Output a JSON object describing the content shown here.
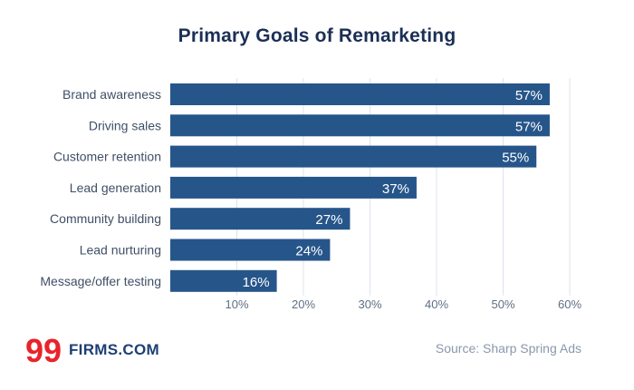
{
  "chart_data": {
    "type": "bar",
    "orientation": "horizontal",
    "title": "Primary Goals of Remarketing",
    "categories": [
      "Brand awareness",
      "Driving sales",
      "Customer retention",
      "Lead generation",
      "Community building",
      "Lead nurturing",
      "Message/offer testing"
    ],
    "values": [
      57,
      57,
      55,
      37,
      27,
      24,
      16
    ],
    "value_labels": [
      "57%",
      "57%",
      "55%",
      "37%",
      "27%",
      "24%",
      "16%"
    ],
    "xlim": [
      0,
      60
    ],
    "xticks": [
      10,
      20,
      30,
      40,
      50,
      60
    ],
    "xtick_labels": [
      "10%",
      "20%",
      "30%",
      "40%",
      "50%",
      "60%"
    ],
    "grid": true,
    "bar_color": "#26558a",
    "label_color": "#ffffff"
  },
  "branding": {
    "logo_mark": "99",
    "logo_text": "FIRMS.COM",
    "logo_mark_color": "#e8232b"
  },
  "source_text": "Source: Sharp Spring Ads"
}
